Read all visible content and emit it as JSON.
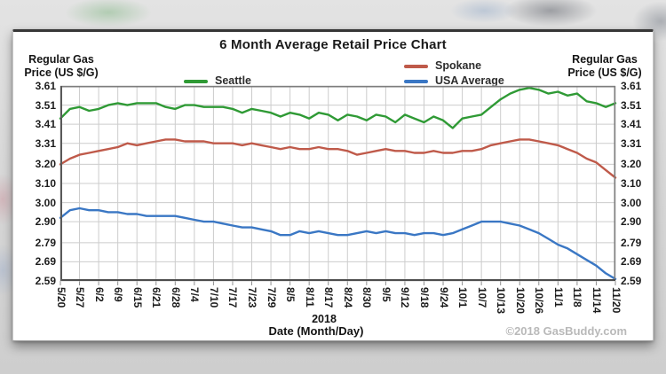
{
  "footer": {
    "copyright": "©2018 GasBuddy.com"
  },
  "chart_data": {
    "type": "line",
    "title": "6 Month Average Retail Price Chart",
    "xlabel": "Date (Month/Day)",
    "x_year_label": "2018",
    "ylabel": "Regular Gas Price (US $/G)",
    "ylabel_lines": [
      "Regular Gas",
      "Price (US $/G)"
    ],
    "ylabel_sides": "both",
    "ylim": [
      2.59,
      3.61
    ],
    "y_ticks": [
      3.61,
      3.51,
      3.41,
      3.31,
      3.2,
      3.1,
      3.0,
      2.9,
      2.79,
      2.69,
      2.59
    ],
    "grid": true,
    "grid_color": "#cccccc",
    "legend_position": "top",
    "categories": [
      "5/20",
      "5/27",
      "6/2",
      "6/9",
      "6/15",
      "6/21",
      "6/28",
      "7/4",
      "7/10",
      "7/17",
      "7/23",
      "7/29",
      "8/5",
      "8/11",
      "8/17",
      "8/24",
      "8/30",
      "9/5",
      "9/12",
      "9/18",
      "9/24",
      "10/1",
      "10/7",
      "10/13",
      "10/20",
      "10/26",
      "11/1",
      "11/8",
      "11/14",
      "11/20"
    ],
    "sampling_note": "values are sampled at ~3-day intervals: 2 points per category interval (59 points from 5/20 to 11/20)",
    "series": [
      {
        "name": "Seattle",
        "color": "#2f9a35",
        "values": [
          3.44,
          3.49,
          3.5,
          3.48,
          3.49,
          3.51,
          3.52,
          3.51,
          3.52,
          3.52,
          3.52,
          3.5,
          3.49,
          3.51,
          3.51,
          3.5,
          3.5,
          3.5,
          3.49,
          3.47,
          3.49,
          3.48,
          3.47,
          3.45,
          3.47,
          3.46,
          3.44,
          3.47,
          3.46,
          3.43,
          3.46,
          3.45,
          3.43,
          3.46,
          3.45,
          3.42,
          3.46,
          3.44,
          3.42,
          3.45,
          3.43,
          3.39,
          3.44,
          3.45,
          3.46,
          3.5,
          3.54,
          3.57,
          3.59,
          3.6,
          3.59,
          3.57,
          3.58,
          3.56,
          3.57,
          3.53,
          3.52,
          3.5,
          3.52
        ]
      },
      {
        "name": "Spokane",
        "color": "#bf5a4a",
        "values": [
          3.2,
          3.23,
          3.25,
          3.26,
          3.27,
          3.28,
          3.29,
          3.31,
          3.3,
          3.31,
          3.32,
          3.33,
          3.33,
          3.32,
          3.32,
          3.32,
          3.31,
          3.31,
          3.31,
          3.3,
          3.31,
          3.3,
          3.29,
          3.28,
          3.29,
          3.28,
          3.28,
          3.29,
          3.28,
          3.28,
          3.27,
          3.25,
          3.26,
          3.27,
          3.28,
          3.27,
          3.27,
          3.26,
          3.26,
          3.27,
          3.26,
          3.26,
          3.27,
          3.27,
          3.28,
          3.3,
          3.31,
          3.32,
          3.33,
          3.33,
          3.32,
          3.31,
          3.3,
          3.28,
          3.26,
          3.23,
          3.21,
          3.17,
          3.13
        ]
      },
      {
        "name": "USA Average",
        "color": "#3a77c4",
        "values": [
          2.92,
          2.96,
          2.97,
          2.96,
          2.96,
          2.95,
          2.95,
          2.94,
          2.94,
          2.93,
          2.93,
          2.93,
          2.93,
          2.92,
          2.91,
          2.9,
          2.9,
          2.89,
          2.88,
          2.87,
          2.87,
          2.86,
          2.85,
          2.83,
          2.83,
          2.85,
          2.84,
          2.85,
          2.84,
          2.83,
          2.83,
          2.84,
          2.85,
          2.84,
          2.85,
          2.84,
          2.84,
          2.83,
          2.84,
          2.84,
          2.83,
          2.84,
          2.86,
          2.88,
          2.9,
          2.9,
          2.9,
          2.89,
          2.88,
          2.86,
          2.84,
          2.81,
          2.78,
          2.76,
          2.73,
          2.7,
          2.67,
          2.63,
          2.6
        ]
      }
    ]
  }
}
